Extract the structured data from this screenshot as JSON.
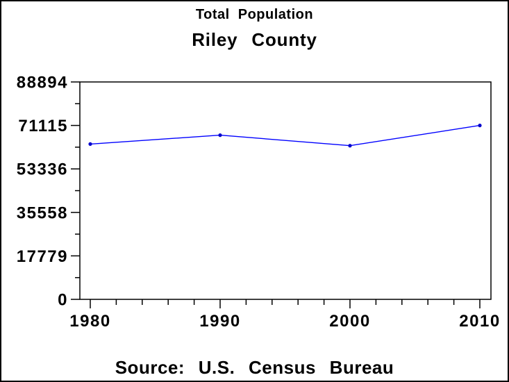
{
  "window": {
    "background": "#ffffff",
    "border_color": "#000000",
    "text_color": "#000000"
  },
  "chart_data": {
    "type": "line",
    "title": "Total Population",
    "subtitle": "Riley County",
    "footnote": "Source: U.S. Census Bureau",
    "x": [
      1980,
      1990,
      2000,
      2010
    ],
    "x_tick_labels": [
      "1980",
      "1990",
      "2000",
      "2010"
    ],
    "series": [
      {
        "name": "Total Population",
        "values": [
          63505,
          67139,
          62843,
          71115
        ],
        "line_color": "#0000ff",
        "marker_color": "#0000cc",
        "marker": "dot"
      }
    ],
    "xlabel": "",
    "ylabel": "",
    "ylim": [
      0,
      88894
    ],
    "y_tick_values": [
      0,
      17779,
      35558,
      53336,
      71115,
      88894
    ],
    "y_tick_labels": [
      "0",
      "17779",
      "35558",
      "53336",
      "71115",
      "88894"
    ],
    "x_minor_tick_interval_years": 2,
    "y_minor_ticks_between_majors": 1,
    "grid": false,
    "legend": "none",
    "frame": true,
    "frame_color": "#000000"
  }
}
